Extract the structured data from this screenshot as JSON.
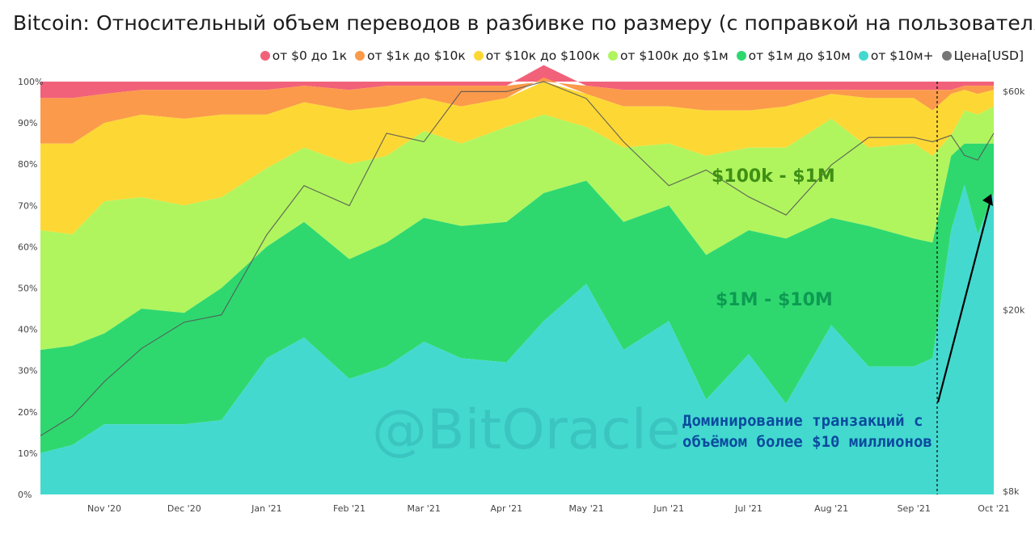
{
  "title": "Bitcoin: Относительный объем переводов в разбивке по размеру (с поправкой на пользователя)",
  "legend": [
    {
      "label": "от $0 до 1к",
      "color": "#f2617a"
    },
    {
      "label": "от $1к до $10к",
      "color": "#fb9a4a"
    },
    {
      "label": "от $10к до $100к",
      "color": "#fdd835"
    },
    {
      "label": "от $100к до $1м",
      "color": "#b0f55e"
    },
    {
      "label": "от $1м до $10м",
      "color": "#2ed86f"
    },
    {
      "label": "от $10м+",
      "color": "#43d9cf"
    },
    {
      "label": "Цена[USD]",
      "color": "#777777"
    }
  ],
  "watermark": "@BitOracle",
  "area_labels": {
    "band_100k_1m": "$100k - $1M",
    "band_1m_10m": "$1M - $10M"
  },
  "annotation": {
    "line1": "Доминирование транзакций с",
    "line2": "объёмом более $10 миллионов"
  },
  "chart_data": {
    "type": "area",
    "stacked_percent": true,
    "log_right_axis": true,
    "x_ticks": [
      "Nov '20",
      "Dec '20",
      "Jan '21",
      "Feb '21",
      "Mar '21",
      "Apr '21",
      "May '21",
      "Jun '21",
      "Jul '21",
      "Aug '21",
      "Sep '21",
      "Oct '21"
    ],
    "y_ticks": [
      "0%",
      "10%",
      "20%",
      "30%",
      "40%",
      "50%",
      "60%",
      "70%",
      "80%",
      "90%",
      "100%"
    ],
    "ylim": [
      0,
      100
    ],
    "y2_ticks": [
      {
        "label": "$8k",
        "value": 8000
      },
      {
        "label": "$20k",
        "value": 20000
      },
      {
        "label": "$60k",
        "value": 60000
      }
    ],
    "y2lim": [
      8000,
      62000
    ],
    "x": [
      "2020-10-08",
      "2020-10-20",
      "2020-11-01",
      "2020-11-15",
      "2020-12-01",
      "2020-12-15",
      "2021-01-01",
      "2021-01-15",
      "2021-02-01",
      "2021-02-15",
      "2021-03-01",
      "2021-03-15",
      "2021-04-01",
      "2021-04-15",
      "2021-05-01",
      "2021-05-15",
      "2021-06-01",
      "2021-06-15",
      "2021-07-01",
      "2021-07-15",
      "2021-08-01",
      "2021-08-15",
      "2021-09-01",
      "2021-09-08",
      "2021-09-15",
      "2021-09-20",
      "2021-09-25",
      "2021-10-01"
    ],
    "series": [
      {
        "name": "от $10м+",
        "values": [
          10,
          12,
          17,
          17,
          17,
          18,
          33,
          38,
          28,
          31,
          37,
          33,
          32,
          42,
          51,
          35,
          42,
          23,
          34,
          22,
          41,
          31,
          31,
          33,
          64,
          75,
          63,
          73
        ]
      },
      {
        "name": "от $1м до $10м",
        "values": [
          25,
          24,
          22,
          28,
          27,
          32,
          27,
          28,
          29,
          30,
          30,
          32,
          34,
          31,
          25,
          31,
          28,
          35,
          30,
          40,
          26,
          34,
          31,
          28,
          18,
          10,
          22,
          12
        ]
      },
      {
        "name": "от $100к до $1м",
        "values": [
          29,
          27,
          32,
          27,
          26,
          22,
          19,
          18,
          23,
          21,
          21,
          20,
          23,
          19,
          13,
          18,
          15,
          24,
          20,
          22,
          24,
          19,
          23,
          21,
          5,
          8,
          7,
          9
        ]
      },
      {
        "name": "от $10к до $100к",
        "values": [
          21,
          22,
          19,
          20,
          21,
          20,
          13,
          11,
          13,
          12,
          8,
          9,
          7,
          9,
          8,
          10,
          9,
          11,
          9,
          10,
          6,
          12,
          11,
          11,
          10,
          5,
          5,
          4
        ]
      },
      {
        "name": "от $1к до $10к",
        "values": [
          11,
          11,
          7,
          6,
          7,
          6,
          6,
          4,
          5,
          5,
          3,
          5,
          3,
          3,
          2,
          4,
          4,
          5,
          5,
          4,
          1,
          2,
          2,
          5,
          1,
          1,
          2,
          1
        ]
      },
      {
        "name": "от $0 до 1к",
        "values": [
          4,
          4,
          3,
          2,
          2,
          2,
          2,
          1,
          2,
          1,
          1,
          1,
          1,
          1,
          1,
          2,
          2,
          2,
          2,
          2,
          2,
          2,
          2,
          2,
          2,
          1,
          1,
          1
        ]
      }
    ],
    "price": {
      "name": "Цена[USD]",
      "values": [
        10700,
        11800,
        14000,
        16500,
        18800,
        19500,
        29000,
        37000,
        33500,
        48000,
        46000,
        59000,
        59000,
        62000,
        57000,
        46000,
        37000,
        40000,
        35000,
        32000,
        41000,
        47000,
        47000,
        46000,
        47500,
        43000,
        42000,
        48000
      ]
    }
  }
}
